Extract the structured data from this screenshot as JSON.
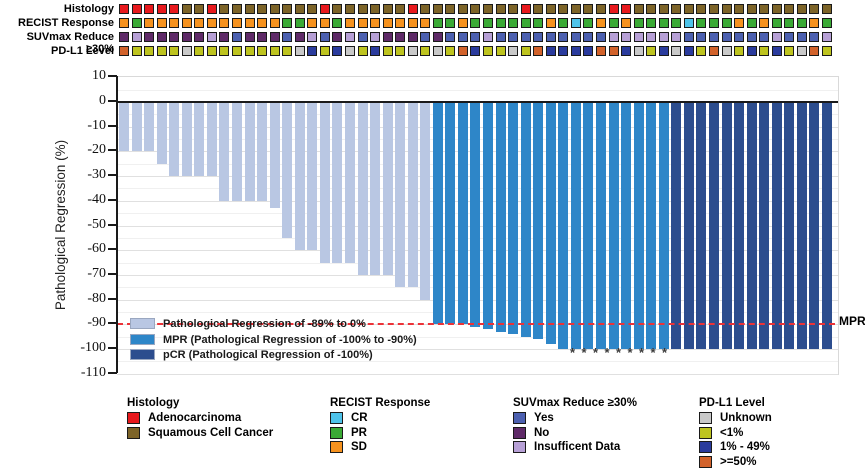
{
  "palette": {
    "adeno": "#E8191D",
    "squam": "#7D6428",
    "cr": "#4EC3EA",
    "pr": "#3AAA35",
    "sd": "#F6921E",
    "suv_yes": "#4C60B0",
    "suv_no": "#5F2A68",
    "suv_insuf": "#B7A0D6",
    "pdl1_unknown": "#C9C9C9",
    "pdl1_lt1": "#BEC41F",
    "pdl1_1_49": "#2A3B9D",
    "pdl1_ge50": "#D2622B",
    "bar_light": "#B9C7E3",
    "bar_mpr": "#2E86C8",
    "bar_pcr": "#2C4D8E",
    "ref_red": "#EC3237"
  },
  "tracks": {
    "rows": [
      {
        "id": "histology",
        "label": "Histology",
        "map": {
          "A": "adeno",
          "S": "squam"
        },
        "codes": [
          "A",
          "A",
          "A",
          "A",
          "A",
          "S",
          "S",
          "A",
          "S",
          "S",
          "S",
          "S",
          "S",
          "S",
          "S",
          "S",
          "A",
          "S",
          "S",
          "S",
          "S",
          "S",
          "S",
          "A",
          "S",
          "S",
          "S",
          "S",
          "S",
          "S",
          "S",
          "S",
          "A",
          "S",
          "S",
          "S",
          "S",
          "S",
          "S",
          "A",
          "A",
          "S",
          "S",
          "S",
          "S",
          "S",
          "S",
          "S",
          "S",
          "S",
          "S",
          "S",
          "S",
          "S",
          "S",
          "S",
          "S"
        ]
      },
      {
        "id": "recist",
        "label": "RECIST Response",
        "map": {
          "C": "cr",
          "G": "pr",
          "O": "sd"
        },
        "codes": [
          "O",
          "G",
          "O",
          "O",
          "O",
          "O",
          "O",
          "O",
          "O",
          "O",
          "O",
          "O",
          "O",
          "G",
          "G",
          "O",
          "O",
          "G",
          "O",
          "O",
          "O",
          "O",
          "O",
          "O",
          "O",
          "G",
          "G",
          "O",
          "G",
          "G",
          "G",
          "G",
          "G",
          "G",
          "O",
          "G",
          "C",
          "G",
          "O",
          "G",
          "O",
          "G",
          "G",
          "G",
          "G",
          "C",
          "G",
          "G",
          "G",
          "O",
          "G",
          "O",
          "G",
          "G",
          "G",
          "O",
          "G"
        ]
      },
      {
        "id": "suvmax",
        "label": "SUVmax Reduce ≥30%",
        "map": {
          "B": "suv_yes",
          "N": "suv_no",
          "I": "suv_insuf"
        },
        "codes": [
          "N",
          "I",
          "N",
          "N",
          "N",
          "N",
          "N",
          "I",
          "N",
          "B",
          "N",
          "N",
          "N",
          "B",
          "N",
          "I",
          "B",
          "N",
          "I",
          "B",
          "I",
          "N",
          "N",
          "N",
          "B",
          "N",
          "B",
          "B",
          "B",
          "I",
          "B",
          "B",
          "B",
          "B",
          "B",
          "B",
          "B",
          "B",
          "B",
          "I",
          "I",
          "I",
          "I",
          "I",
          "I",
          "B",
          "B",
          "B",
          "B",
          "B",
          "B",
          "B",
          "I",
          "B",
          "B",
          "B",
          "I"
        ]
      },
      {
        "id": "pdl1",
        "label": "PD-L1 Level",
        "map": {
          "U": "pdl1_unknown",
          "L": "pdl1_lt1",
          "D": "pdl1_1_49",
          "H": "pdl1_ge50"
        },
        "codes": [
          "H",
          "L",
          "L",
          "L",
          "L",
          "U",
          "L",
          "L",
          "L",
          "L",
          "L",
          "L",
          "L",
          "L",
          "U",
          "D",
          "L",
          "D",
          "U",
          "L",
          "D",
          "L",
          "L",
          "U",
          "L",
          "U",
          "L",
          "H",
          "D",
          "L",
          "L",
          "U",
          "L",
          "H",
          "D",
          "D",
          "D",
          "D",
          "H",
          "H",
          "D",
          "U",
          "L",
          "D",
          "U",
          "D",
          "L",
          "H",
          "U",
          "L",
          "D",
          "L",
          "D",
          "L",
          "U",
          "H",
          "L"
        ]
      }
    ]
  },
  "chart_data": {
    "type": "bar",
    "subtype": "waterfall",
    "title": "",
    "xlabel": "",
    "ylabel": "Pathological Regression (%)",
    "ylim": [
      -110,
      10
    ],
    "yticks": [
      10,
      0,
      -10,
      -20,
      -30,
      -40,
      -50,
      -60,
      -70,
      -80,
      -90,
      -100,
      -110
    ],
    "grid": true,
    "n_bars": 57,
    "values": [
      -20,
      -20,
      -20,
      -25,
      -30,
      -30,
      -30,
      -30,
      -40,
      -40,
      -40,
      -40,
      -43,
      -55,
      -60,
      -60,
      -65,
      -65,
      -65,
      -70,
      -70,
      -70,
      -75,
      -75,
      -80,
      -90,
      -90,
      -90,
      -91,
      -92,
      -93,
      -94,
      -95,
      -96,
      -98,
      -100,
      -100,
      -100,
      -100,
      -100,
      -100,
      -100,
      -100,
      -100,
      -100,
      -100,
      -100,
      -100,
      -100,
      -100,
      -100,
      -100,
      -100,
      -100,
      -100,
      -100,
      -100
    ],
    "bar_groups": [
      "L",
      "L",
      "L",
      "L",
      "L",
      "L",
      "L",
      "L",
      "L",
      "L",
      "L",
      "L",
      "L",
      "L",
      "L",
      "L",
      "L",
      "L",
      "L",
      "L",
      "L",
      "L",
      "L",
      "L",
      "L",
      "M",
      "M",
      "M",
      "M",
      "M",
      "M",
      "M",
      "M",
      "M",
      "M",
      "M",
      "M",
      "M",
      "M",
      "M",
      "M",
      "M",
      "M",
      "M",
      "P",
      "P",
      "P",
      "P",
      "P",
      "P",
      "P",
      "P",
      "P",
      "P",
      "P",
      "P",
      "P"
    ],
    "group_map": {
      "L": "bar_light",
      "M": "bar_mpr",
      "P": "bar_pcr"
    },
    "reference_line": {
      "value": -90,
      "label": "MPR",
      "style": "dashed",
      "color": "#EC3237"
    },
    "annotations": {
      "asterisk_bar_indices": [
        36,
        37,
        38,
        39,
        40,
        41,
        42,
        43,
        44
      ],
      "asterisk_glyph": "*"
    },
    "legend_position": "lower-left-inside",
    "legend": [
      {
        "label": "Pathological Regression of -89% to 0%",
        "color": "bar_light"
      },
      {
        "label": "MPR (Pathological Regression of -100% to -90%)",
        "color": "bar_mpr"
      },
      {
        "label": "pCR (Pathological Regression of -100%)",
        "color": "bar_pcr"
      }
    ]
  },
  "bottom_legend": {
    "groups": [
      {
        "header": "Histology",
        "items": [
          {
            "label": "Adenocarcinoma",
            "color": "adeno"
          },
          {
            "label": "Squamous Cell Cancer",
            "color": "squam"
          }
        ]
      },
      {
        "header": "RECIST Response",
        "items": [
          {
            "label": "CR",
            "color": "cr"
          },
          {
            "label": "PR",
            "color": "pr"
          },
          {
            "label": "SD",
            "color": "sd"
          }
        ]
      },
      {
        "header": "SUVmax Reduce ≥30%",
        "items": [
          {
            "label": "Yes",
            "color": "suv_yes"
          },
          {
            "label": "No",
            "color": "suv_no"
          },
          {
            "label": "Insufficent Data",
            "color": "suv_insuf"
          }
        ]
      },
      {
        "header": "PD-L1 Level",
        "items": [
          {
            "label": "Unknown",
            "color": "pdl1_unknown"
          },
          {
            "label": "<1%",
            "color": "pdl1_lt1"
          },
          {
            "label": "1% - 49%",
            "color": "pdl1_1_49"
          },
          {
            "label": ">=50%",
            "color": "pdl1_ge50"
          }
        ]
      }
    ]
  }
}
